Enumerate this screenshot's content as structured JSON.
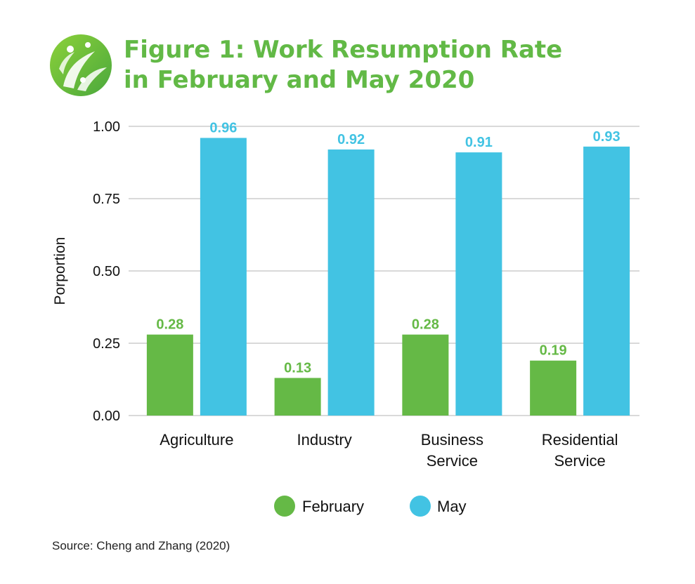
{
  "title": {
    "line1": "Figure 1: Work Resumption Rate",
    "line2": "in February and May 2020"
  },
  "source": "Source: Cheng and Zhang (2020)",
  "colors": {
    "title": "#62b946",
    "february": "#65b946",
    "may": "#42c3e3",
    "grid": "#d9d9d9"
  },
  "chart_data": {
    "type": "bar",
    "categories": [
      "Agriculture",
      "Industry",
      "Business Service",
      "Residential Service"
    ],
    "category_lines": [
      [
        "Agriculture"
      ],
      [
        "Industry"
      ],
      [
        "Business",
        "Service"
      ],
      [
        "Residential",
        "Service"
      ]
    ],
    "series": [
      {
        "name": "February",
        "values": [
          0.28,
          0.13,
          0.28,
          0.19
        ],
        "labels": [
          "0.28",
          "0.13",
          "0.28",
          "0.19"
        ]
      },
      {
        "name": "May",
        "values": [
          0.96,
          0.92,
          0.91,
          0.93
        ],
        "labels": [
          "0.96",
          "0.92",
          "0.91",
          "0.93"
        ]
      }
    ],
    "ylabel": "Porportion",
    "xlabel": "",
    "ylim": [
      0,
      1
    ],
    "yticks": [
      "0.00",
      "0.25",
      "0.50",
      "0.75",
      "1.00"
    ],
    "grid": true,
    "legend_position": "bottom-center"
  }
}
